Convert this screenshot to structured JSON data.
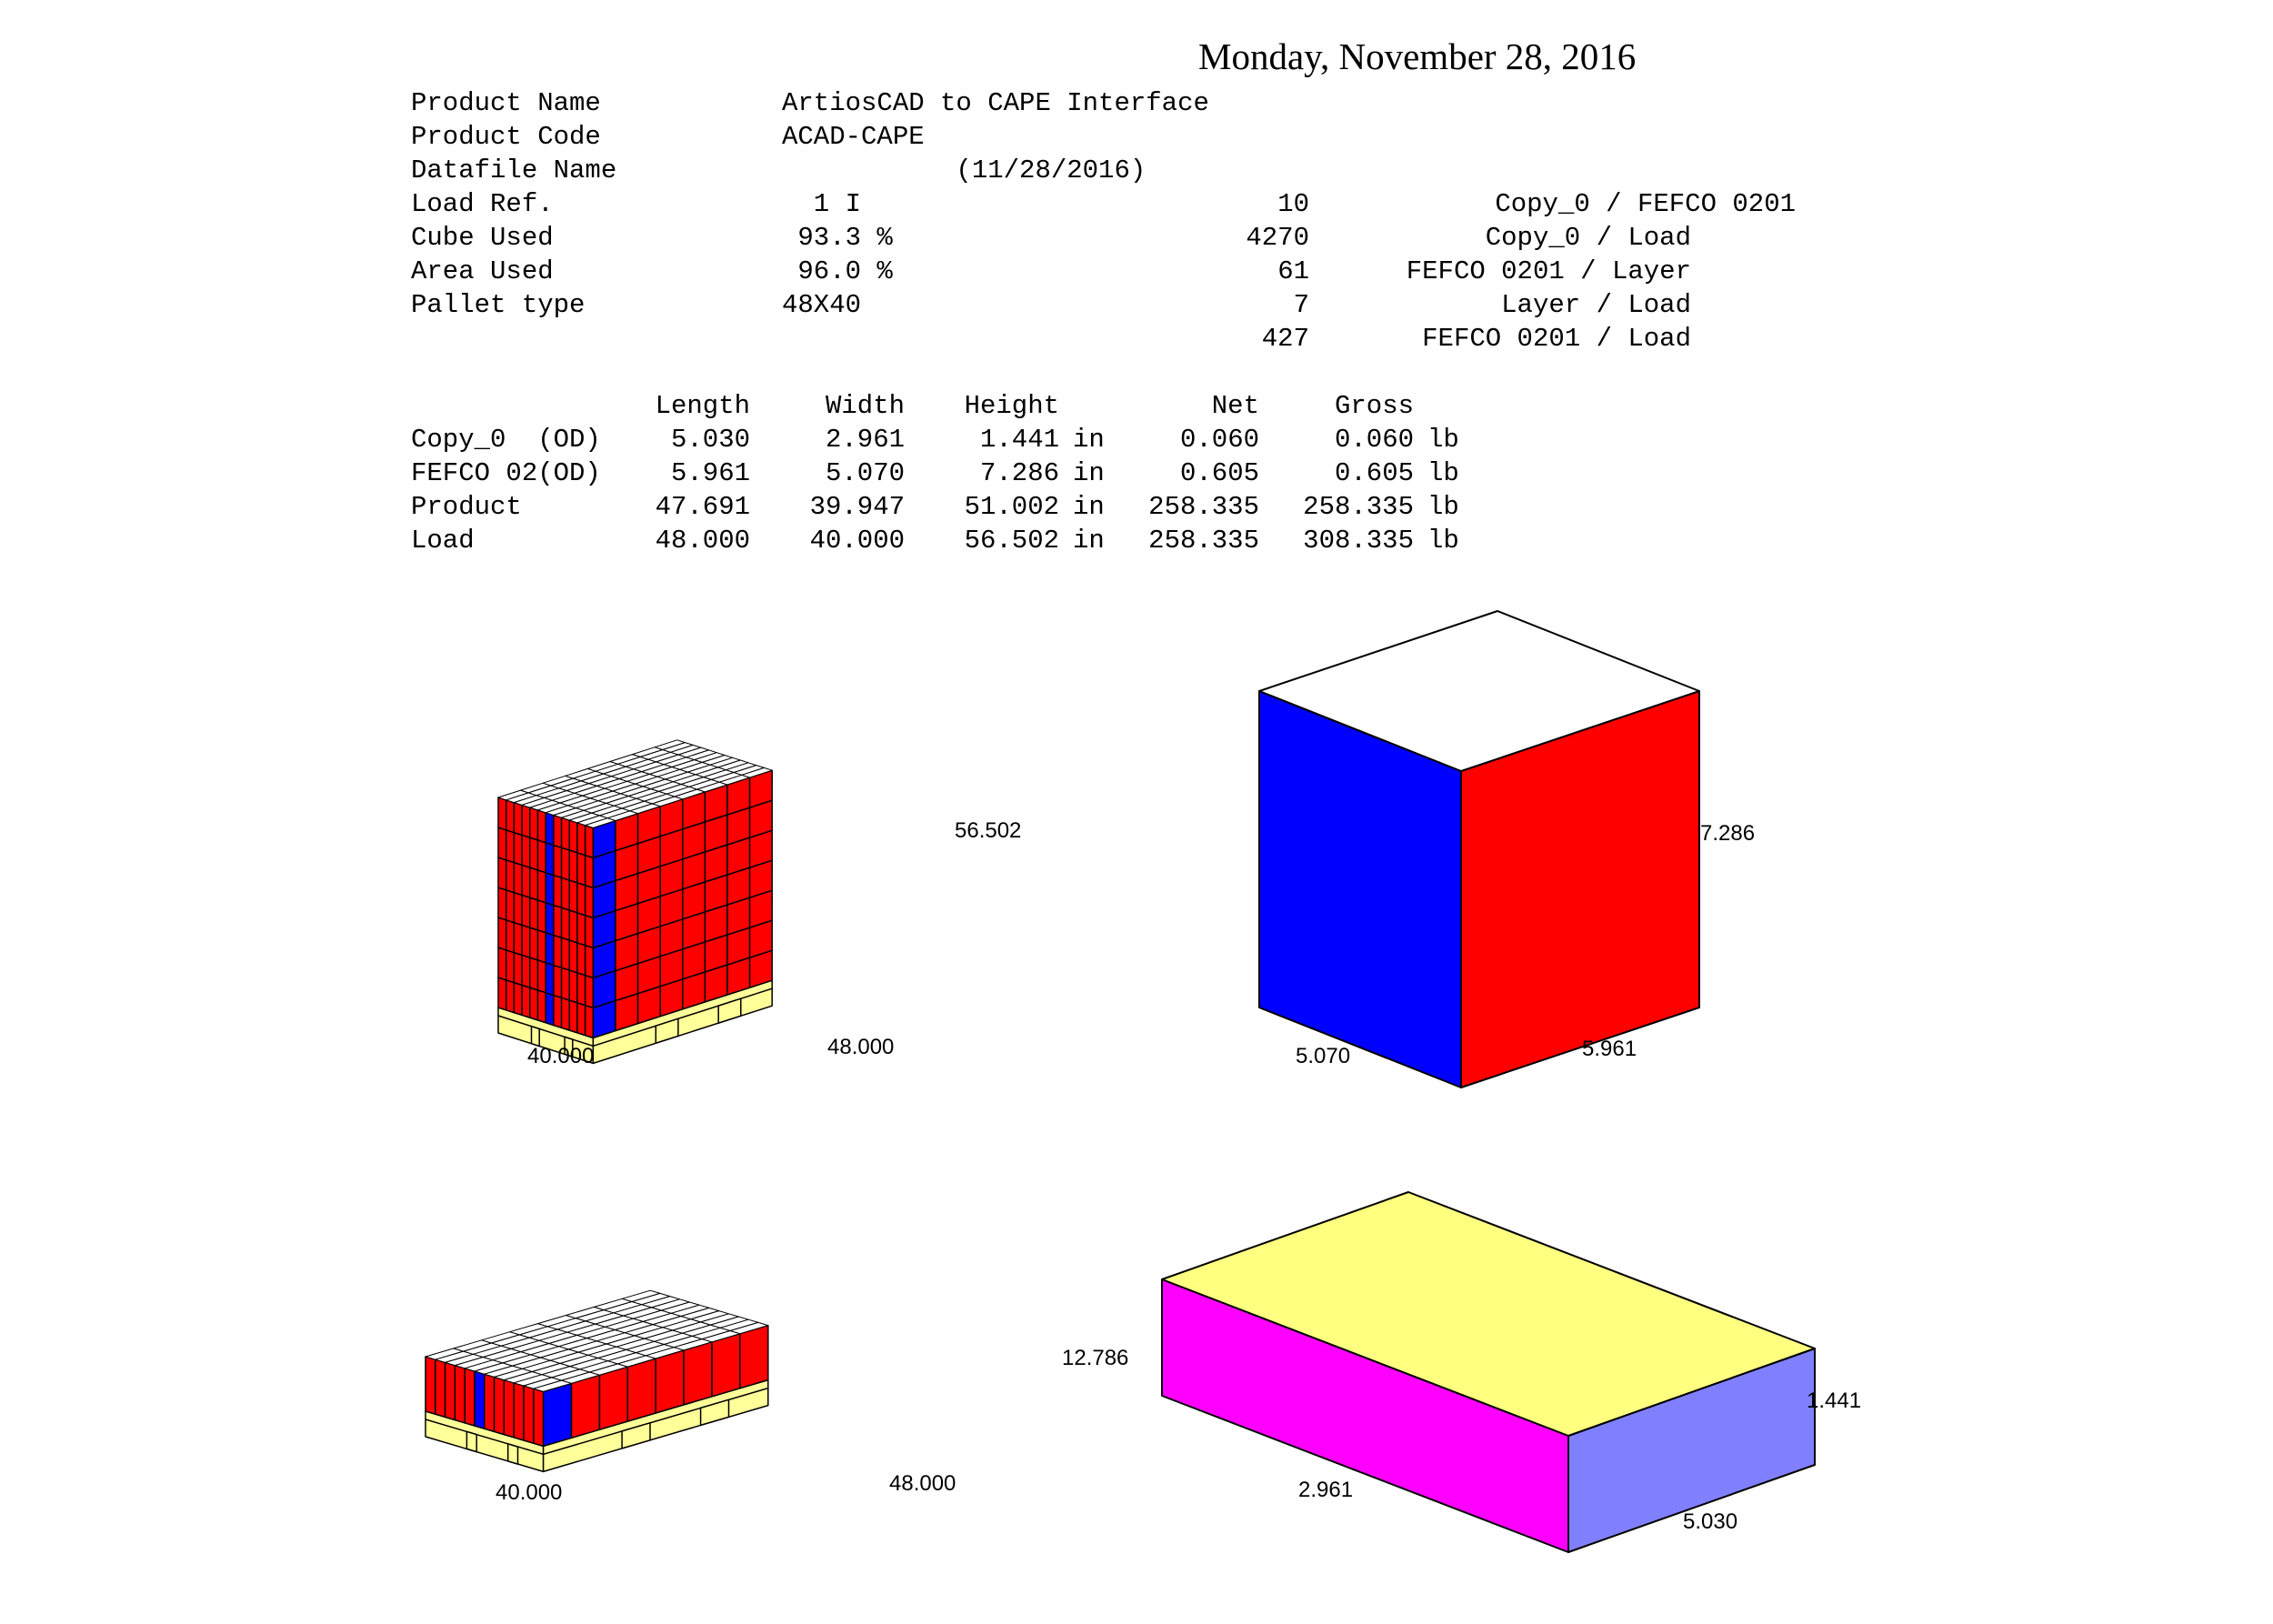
{
  "date": "Monday, November 28, 2016",
  "summary": [
    {
      "label": "Product Name",
      "value": "ArtiosCAD to CAPE Interface",
      "count": "",
      "desc": ""
    },
    {
      "label": "Product Code",
      "value": "ACAD-CAPE",
      "count": "",
      "desc": ""
    },
    {
      "label": "Datafile Name",
      "value": "           (11/28/2016)",
      "count": "",
      "desc": ""
    },
    {
      "label": "Load Ref.",
      "value": "  1 I",
      "count": "10",
      "desc": "Copy_0 / FEFCO 0201"
    },
    {
      "label": "Cube Used",
      "value": " 93.3 %",
      "count": "4270",
      "desc": "Copy_0 / Load"
    },
    {
      "label": "Area Used",
      "value": " 96.0 %",
      "count": "61",
      "desc": "FEFCO 0201 / Layer"
    },
    {
      "label": "Pallet type",
      "value": "48X40",
      "count": "7",
      "desc": "Layer / Load"
    },
    {
      "label": "",
      "value": "",
      "count": "427",
      "desc": "FEFCO 0201 / Load"
    }
  ],
  "dims_table": {
    "headers": [
      "Length",
      "Width",
      "Height",
      "Net",
      "Gross"
    ],
    "rows": [
      {
        "name": "Copy_0  (OD)",
        "length": "5.030",
        "width": "2.961",
        "height": "1.441",
        "unit": "in",
        "net": "0.060",
        "gross": "0.060",
        "wunit": "lb"
      },
      {
        "name": "FEFCO 02(OD)",
        "length": "5.961",
        "width": "5.070",
        "height": "7.286",
        "unit": "in",
        "net": "0.605",
        "gross": "0.605",
        "wunit": "lb"
      },
      {
        "name": "Product",
        "length": "47.691",
        "width": "39.947",
        "height": "51.002",
        "unit": "in",
        "net": "258.335",
        "gross": "258.335",
        "wunit": "lb"
      },
      {
        "name": "Load",
        "length": "48.000",
        "width": "40.000",
        "height": "56.502",
        "unit": "in",
        "net": "258.335",
        "gross": "308.335",
        "wunit": "lb"
      }
    ]
  },
  "figures": {
    "load": {
      "height": "56.502",
      "width": "40.000",
      "length": "48.000"
    },
    "case": {
      "height": "7.286",
      "width": "5.070",
      "length": "5.961"
    },
    "layer": {
      "height": "12.786",
      "width": "40.000",
      "length": "48.000"
    },
    "product": {
      "height": "1.441",
      "width": "2.961",
      "length": "5.030"
    }
  },
  "colors": {
    "case_front": "#ff0000",
    "case_side": "#0000ff",
    "case_top": "#ffffff",
    "pallet": "#ffff99",
    "product_front": "#ff00ff",
    "product_side": "#8080ff",
    "product_top": "#ffff80"
  }
}
